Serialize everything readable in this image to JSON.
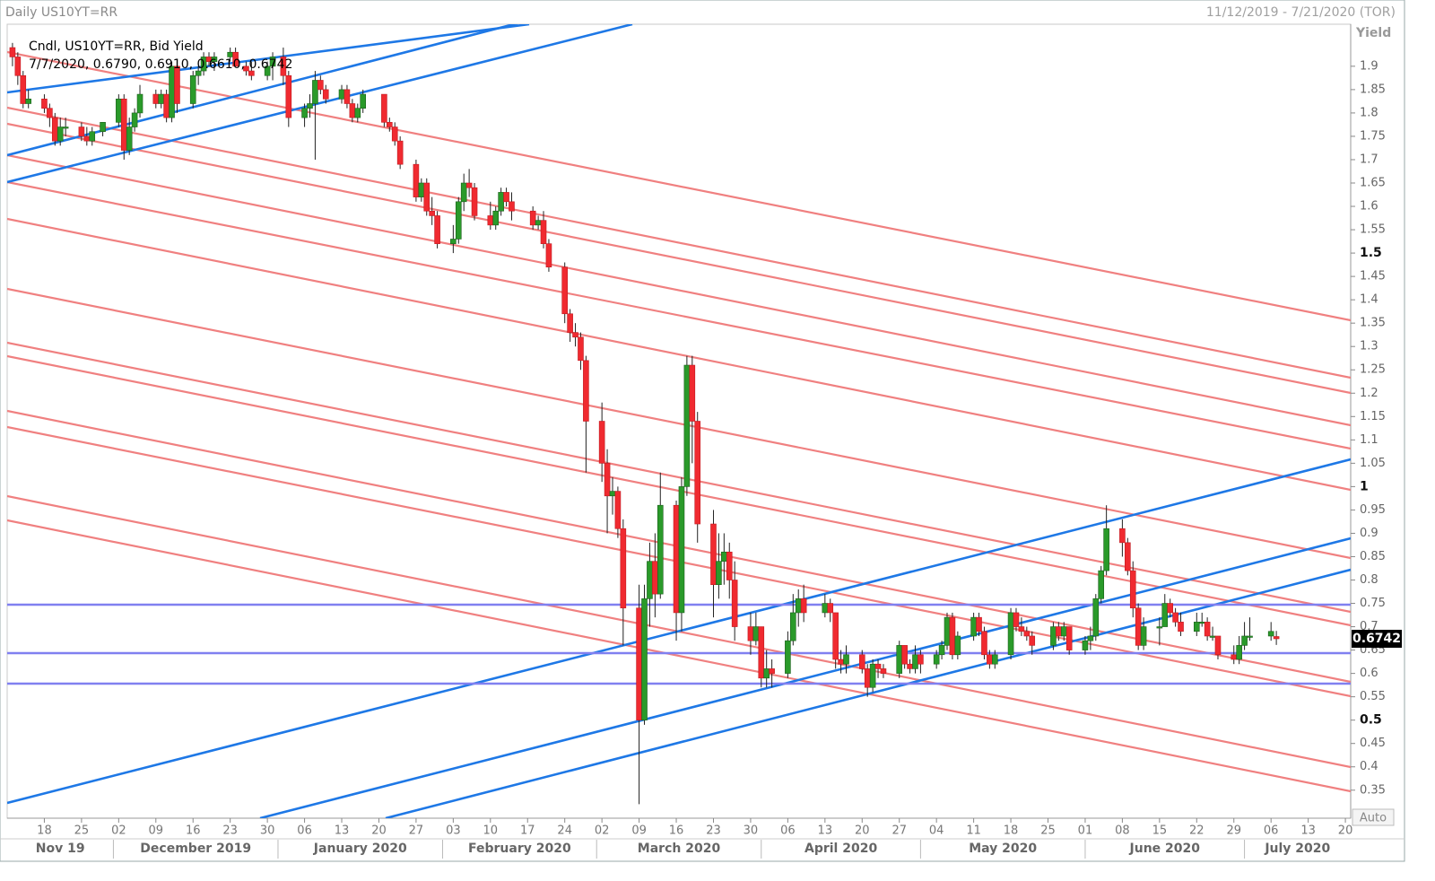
{
  "chart_data": {
    "type": "candlestick",
    "title": "Daily US10YT=RR",
    "subtitle": "11/12/2019 - 7/21/2020 (TOR)",
    "y_label": "Yield",
    "legend": [
      "Cndl, US10YT=RR, Bid Yield",
      "7/7/2020, 0.6790, 0.6910, 0.6610, 0.6742"
    ],
    "button": "Auto",
    "up_color": "#2a9a2a",
    "down_color": "#f02a30",
    "xlim": [
      "2019-11-11",
      "2020-07-21"
    ],
    "ylim": [
      0.29,
      1.99
    ],
    "yticks": [
      1.9,
      1.85,
      1.8,
      1.75,
      1.7,
      1.65,
      1.6,
      1.55,
      1.5,
      1.45,
      1.4,
      1.35,
      1.3,
      1.25,
      1.2,
      1.15,
      1.1,
      1.05,
      1,
      0.95,
      0.9,
      0.85,
      0.8,
      0.75,
      0.7,
      0.65,
      0.6,
      0.55,
      0.5,
      0.45,
      0.4,
      0.35
    ],
    "xticks": [
      {
        "value": "2019-11-18",
        "label": "18"
      },
      {
        "value": "2019-11-25",
        "label": "25"
      },
      {
        "value": "2019-12-02",
        "label": "02"
      },
      {
        "value": "2019-12-09",
        "label": "09"
      },
      {
        "value": "2019-12-16",
        "label": "16"
      },
      {
        "value": "2019-12-23",
        "label": "23"
      },
      {
        "value": "2019-12-30",
        "label": "30"
      },
      {
        "value": "2020-01-06",
        "label": "06"
      },
      {
        "value": "2020-01-13",
        "label": "13"
      },
      {
        "value": "2020-01-20",
        "label": "20"
      },
      {
        "value": "2020-01-27",
        "label": "27"
      },
      {
        "value": "2020-02-03",
        "label": "03"
      },
      {
        "value": "2020-02-10",
        "label": "10"
      },
      {
        "value": "2020-02-17",
        "label": "17"
      },
      {
        "value": "2020-02-24",
        "label": "24"
      },
      {
        "value": "2020-03-02",
        "label": "02"
      },
      {
        "value": "2020-03-09",
        "label": "09"
      },
      {
        "value": "2020-03-16",
        "label": "16"
      },
      {
        "value": "2020-03-23",
        "label": "23"
      },
      {
        "value": "2020-03-30",
        "label": "30"
      },
      {
        "value": "2020-04-06",
        "label": "06"
      },
      {
        "value": "2020-04-13",
        "label": "13"
      },
      {
        "value": "2020-04-20",
        "label": "20"
      },
      {
        "value": "2020-04-27",
        "label": "27"
      },
      {
        "value": "2020-05-04",
        "label": "04"
      },
      {
        "value": "2020-05-11",
        "label": "11"
      },
      {
        "value": "2020-05-18",
        "label": "18"
      },
      {
        "value": "2020-05-25",
        "label": "25"
      },
      {
        "value": "2020-06-01",
        "label": "01"
      },
      {
        "value": "2020-06-08",
        "label": "08"
      },
      {
        "value": "2020-06-15",
        "label": "15"
      },
      {
        "value": "2020-06-22",
        "label": "22"
      },
      {
        "value": "2020-06-29",
        "label": "29"
      },
      {
        "value": "2020-07-06",
        "label": "06"
      },
      {
        "value": "2020-07-13",
        "label": "13"
      },
      {
        "value": "2020-07-20",
        "label": "20"
      }
    ],
    "month_labels": [
      {
        "value": "2019-11-01",
        "label": "Nov 19"
      },
      {
        "value": "2019-12-01",
        "label": "December 2019"
      },
      {
        "value": "2020-01-01",
        "label": "January 2020"
      },
      {
        "value": "2020-02-01",
        "label": "February 2020"
      },
      {
        "value": "2020-03-01",
        "label": "March 2020"
      },
      {
        "value": "2020-04-01",
        "label": "April 2020"
      },
      {
        "value": "2020-05-01",
        "label": "May 2020"
      },
      {
        "value": "2020-06-01",
        "label": "June 2020"
      },
      {
        "value": "2020-07-01",
        "label": "July 2020"
      }
    ],
    "x": [
      "2019-11-12",
      "2019-11-13",
      "2019-11-14",
      "2019-11-15",
      "2019-11-18",
      "2019-11-19",
      "2019-11-20",
      "2019-11-21",
      "2019-11-22",
      "2019-11-25",
      "2019-11-26",
      "2019-11-27",
      "2019-11-29",
      "2019-12-02",
      "2019-12-03",
      "2019-12-04",
      "2019-12-05",
      "2019-12-06",
      "2019-12-09",
      "2019-12-10",
      "2019-12-11",
      "2019-12-12",
      "2019-12-13",
      "2019-12-16",
      "2019-12-17",
      "2019-12-18",
      "2019-12-19",
      "2019-12-20",
      "2019-12-23",
      "2019-12-24",
      "2019-12-26",
      "2019-12-27",
      "2019-12-30",
      "2019-12-31",
      "2020-01-02",
      "2020-01-03",
      "2020-01-06",
      "2020-01-07",
      "2020-01-08",
      "2020-01-09",
      "2020-01-10",
      "2020-01-13",
      "2020-01-14",
      "2020-01-15",
      "2020-01-16",
      "2020-01-17",
      "2020-01-21",
      "2020-01-22",
      "2020-01-23",
      "2020-01-24",
      "2020-01-27",
      "2020-01-28",
      "2020-01-29",
      "2020-01-30",
      "2020-01-31",
      "2020-02-03",
      "2020-02-04",
      "2020-02-05",
      "2020-02-06",
      "2020-02-07",
      "2020-02-10",
      "2020-02-11",
      "2020-02-12",
      "2020-02-13",
      "2020-02-14",
      "2020-02-18",
      "2020-02-19",
      "2020-02-20",
      "2020-02-21",
      "2020-02-24",
      "2020-02-25",
      "2020-02-26",
      "2020-02-27",
      "2020-02-28",
      "2020-03-02",
      "2020-03-03",
      "2020-03-04",
      "2020-03-05",
      "2020-03-06",
      "2020-03-09",
      "2020-03-10",
      "2020-03-11",
      "2020-03-12",
      "2020-03-13",
      "2020-03-16",
      "2020-03-17",
      "2020-03-18",
      "2020-03-19",
      "2020-03-20",
      "2020-03-23",
      "2020-03-24",
      "2020-03-25",
      "2020-03-26",
      "2020-03-27",
      "2020-03-30",
      "2020-03-31",
      "2020-04-01",
      "2020-04-02",
      "2020-04-03",
      "2020-04-06",
      "2020-04-07",
      "2020-04-08",
      "2020-04-09",
      "2020-04-13",
      "2020-04-14",
      "2020-04-15",
      "2020-04-16",
      "2020-04-17",
      "2020-04-20",
      "2020-04-21",
      "2020-04-22",
      "2020-04-23",
      "2020-04-24",
      "2020-04-27",
      "2020-04-28",
      "2020-04-29",
      "2020-04-30",
      "2020-05-01",
      "2020-05-04",
      "2020-05-05",
      "2020-05-06",
      "2020-05-07",
      "2020-05-08",
      "2020-05-11",
      "2020-05-12",
      "2020-05-13",
      "2020-05-14",
      "2020-05-15",
      "2020-05-18",
      "2020-05-19",
      "2020-05-20",
      "2020-05-21",
      "2020-05-22",
      "2020-05-26",
      "2020-05-27",
      "2020-05-28",
      "2020-05-29",
      "2020-06-01",
      "2020-06-02",
      "2020-06-03",
      "2020-06-04",
      "2020-06-05",
      "2020-06-08",
      "2020-06-09",
      "2020-06-10",
      "2020-06-11",
      "2020-06-12",
      "2020-06-15",
      "2020-06-16",
      "2020-06-17",
      "2020-06-18",
      "2020-06-19",
      "2020-06-22",
      "2020-06-23",
      "2020-06-24",
      "2020-06-25",
      "2020-06-26",
      "2020-06-29",
      "2020-06-30",
      "2020-07-01",
      "2020-07-02",
      "2020-07-06",
      "2020-07-07"
    ],
    "ohlc": [
      [
        1.94,
        1.95,
        1.9,
        1.92
      ],
      [
        1.92,
        1.93,
        1.86,
        1.88
      ],
      [
        1.88,
        1.89,
        1.81,
        1.82
      ],
      [
        1.82,
        1.85,
        1.81,
        1.83
      ],
      [
        1.83,
        1.84,
        1.8,
        1.81
      ],
      [
        1.81,
        1.82,
        1.77,
        1.79
      ],
      [
        1.79,
        1.8,
        1.73,
        1.74
      ],
      [
        1.74,
        1.79,
        1.73,
        1.77
      ],
      [
        1.77,
        1.79,
        1.75,
        1.77
      ],
      [
        1.77,
        1.78,
        1.74,
        1.75
      ],
      [
        1.75,
        1.77,
        1.73,
        1.74
      ],
      [
        1.74,
        1.77,
        1.73,
        1.76
      ],
      [
        1.76,
        1.78,
        1.75,
        1.78
      ],
      [
        1.78,
        1.84,
        1.77,
        1.83
      ],
      [
        1.83,
        1.84,
        1.7,
        1.72
      ],
      [
        1.72,
        1.79,
        1.71,
        1.77
      ],
      [
        1.77,
        1.81,
        1.76,
        1.8
      ],
      [
        1.8,
        1.86,
        1.79,
        1.84
      ],
      [
        1.84,
        1.85,
        1.81,
        1.82
      ],
      [
        1.82,
        1.85,
        1.81,
        1.84
      ],
      [
        1.84,
        1.85,
        1.78,
        1.79
      ],
      [
        1.79,
        1.91,
        1.78,
        1.9
      ],
      [
        1.9,
        1.91,
        1.8,
        1.82
      ],
      [
        1.82,
        1.89,
        1.81,
        1.88
      ],
      [
        1.88,
        1.9,
        1.86,
        1.89
      ],
      [
        1.89,
        1.93,
        1.88,
        1.92
      ],
      [
        1.92,
        1.93,
        1.9,
        1.91
      ],
      [
        1.91,
        1.93,
        1.89,
        1.92
      ],
      [
        1.92,
        1.94,
        1.91,
        1.93
      ],
      [
        1.93,
        1.94,
        1.9,
        1.9
      ],
      [
        1.9,
        1.91,
        1.88,
        1.89
      ],
      [
        1.89,
        1.91,
        1.87,
        1.88
      ],
      [
        1.88,
        1.91,
        1.87,
        1.9
      ],
      [
        1.9,
        1.93,
        1.87,
        1.92
      ],
      [
        1.92,
        1.94,
        1.86,
        1.88
      ],
      [
        1.88,
        1.89,
        1.77,
        1.79
      ],
      [
        1.79,
        1.82,
        1.77,
        1.81
      ],
      [
        1.81,
        1.84,
        1.79,
        1.82
      ],
      [
        1.82,
        1.89,
        1.7,
        1.87
      ],
      [
        1.87,
        1.88,
        1.84,
        1.85
      ],
      [
        1.85,
        1.86,
        1.82,
        1.83
      ],
      [
        1.83,
        1.86,
        1.82,
        1.85
      ],
      [
        1.85,
        1.86,
        1.81,
        1.82
      ],
      [
        1.82,
        1.83,
        1.78,
        1.79
      ],
      [
        1.79,
        1.82,
        1.78,
        1.81
      ],
      [
        1.81,
        1.85,
        1.8,
        1.84
      ],
      [
        1.84,
        1.84,
        1.77,
        1.78
      ],
      [
        1.78,
        1.79,
        1.76,
        1.77
      ],
      [
        1.77,
        1.78,
        1.73,
        1.74
      ],
      [
        1.74,
        1.75,
        1.68,
        1.69
      ],
      [
        1.69,
        1.7,
        1.61,
        1.62
      ],
      [
        1.62,
        1.66,
        1.61,
        1.65
      ],
      [
        1.65,
        1.66,
        1.58,
        1.59
      ],
      [
        1.59,
        1.62,
        1.56,
        1.58
      ],
      [
        1.58,
        1.59,
        1.51,
        1.52
      ],
      [
        1.52,
        1.56,
        1.5,
        1.53
      ],
      [
        1.53,
        1.62,
        1.52,
        1.61
      ],
      [
        1.61,
        1.67,
        1.59,
        1.65
      ],
      [
        1.65,
        1.68,
        1.62,
        1.64
      ],
      [
        1.64,
        1.65,
        1.57,
        1.58
      ],
      [
        1.58,
        1.61,
        1.55,
        1.56
      ],
      [
        1.56,
        1.6,
        1.55,
        1.59
      ],
      [
        1.59,
        1.64,
        1.58,
        1.63
      ],
      [
        1.63,
        1.64,
        1.6,
        1.61
      ],
      [
        1.61,
        1.63,
        1.57,
        1.59
      ],
      [
        1.59,
        1.6,
        1.55,
        1.56
      ],
      [
        1.56,
        1.58,
        1.55,
        1.57
      ],
      [
        1.57,
        1.59,
        1.51,
        1.52
      ],
      [
        1.52,
        1.53,
        1.46,
        1.47
      ],
      [
        1.47,
        1.48,
        1.35,
        1.37
      ],
      [
        1.37,
        1.38,
        1.31,
        1.33
      ],
      [
        1.33,
        1.35,
        1.3,
        1.32
      ],
      [
        1.32,
        1.33,
        1.25,
        1.27
      ],
      [
        1.27,
        1.28,
        1.03,
        1.14
      ],
      [
        1.14,
        1.18,
        1.01,
        1.05
      ],
      [
        1.05,
        1.08,
        0.9,
        0.98
      ],
      [
        0.98,
        1.02,
        0.94,
        0.99
      ],
      [
        0.99,
        1.0,
        0.89,
        0.91
      ],
      [
        0.91,
        0.93,
        0.66,
        0.74
      ],
      [
        0.74,
        0.79,
        0.32,
        0.5
      ],
      [
        0.5,
        0.79,
        0.49,
        0.76
      ],
      [
        0.76,
        0.88,
        0.7,
        0.84
      ],
      [
        0.84,
        0.9,
        0.72,
        0.77
      ],
      [
        0.77,
        1.03,
        0.76,
        0.96
      ],
      [
        0.96,
        0.97,
        0.67,
        0.73
      ],
      [
        0.73,
        1.02,
        0.69,
        1.0
      ],
      [
        1.0,
        1.28,
        0.98,
        1.26
      ],
      [
        1.26,
        1.28,
        1.05,
        1.14
      ],
      [
        1.14,
        1.16,
        0.88,
        0.92
      ],
      [
        0.92,
        0.95,
        0.72,
        0.79
      ],
      [
        0.79,
        0.9,
        0.76,
        0.84
      ],
      [
        0.84,
        0.9,
        0.79,
        0.86
      ],
      [
        0.86,
        0.88,
        0.76,
        0.8
      ],
      [
        0.8,
        0.84,
        0.67,
        0.7
      ],
      [
        0.7,
        0.73,
        0.64,
        0.67
      ],
      [
        0.67,
        0.73,
        0.66,
        0.7
      ],
      [
        0.7,
        0.7,
        0.57,
        0.59
      ],
      [
        0.59,
        0.65,
        0.57,
        0.61
      ],
      [
        0.61,
        0.63,
        0.57,
        0.6
      ],
      [
        0.6,
        0.69,
        0.59,
        0.67
      ],
      [
        0.67,
        0.77,
        0.66,
        0.73
      ],
      [
        0.73,
        0.78,
        0.7,
        0.76
      ],
      [
        0.76,
        0.79,
        0.71,
        0.73
      ],
      [
        0.73,
        0.77,
        0.72,
        0.75
      ],
      [
        0.75,
        0.76,
        0.71,
        0.73
      ],
      [
        0.73,
        0.73,
        0.61,
        0.63
      ],
      [
        0.63,
        0.65,
        0.6,
        0.62
      ],
      [
        0.62,
        0.66,
        0.6,
        0.64
      ],
      [
        0.64,
        0.65,
        0.6,
        0.61
      ],
      [
        0.61,
        0.62,
        0.55,
        0.57
      ],
      [
        0.57,
        0.63,
        0.56,
        0.62
      ],
      [
        0.62,
        0.63,
        0.59,
        0.61
      ],
      [
        0.61,
        0.62,
        0.59,
        0.6
      ],
      [
        0.6,
        0.67,
        0.59,
        0.66
      ],
      [
        0.66,
        0.66,
        0.61,
        0.62
      ],
      [
        0.62,
        0.63,
        0.6,
        0.61
      ],
      [
        0.61,
        0.66,
        0.6,
        0.64
      ],
      [
        0.64,
        0.65,
        0.6,
        0.62
      ],
      [
        0.62,
        0.65,
        0.61,
        0.64
      ],
      [
        0.64,
        0.67,
        0.63,
        0.66
      ],
      [
        0.66,
        0.73,
        0.65,
        0.72
      ],
      [
        0.72,
        0.73,
        0.63,
        0.64
      ],
      [
        0.64,
        0.69,
        0.63,
        0.68
      ],
      [
        0.68,
        0.73,
        0.67,
        0.72
      ],
      [
        0.72,
        0.73,
        0.68,
        0.69
      ],
      [
        0.69,
        0.7,
        0.63,
        0.64
      ],
      [
        0.64,
        0.65,
        0.61,
        0.62
      ],
      [
        0.62,
        0.65,
        0.61,
        0.64
      ],
      [
        0.64,
        0.74,
        0.63,
        0.73
      ],
      [
        0.73,
        0.74,
        0.69,
        0.7
      ],
      [
        0.7,
        0.72,
        0.68,
        0.69
      ],
      [
        0.69,
        0.7,
        0.67,
        0.68
      ],
      [
        0.68,
        0.69,
        0.64,
        0.66
      ],
      [
        0.66,
        0.71,
        0.65,
        0.7
      ],
      [
        0.7,
        0.71,
        0.67,
        0.68
      ],
      [
        0.68,
        0.71,
        0.67,
        0.7
      ],
      [
        0.7,
        0.7,
        0.64,
        0.65
      ],
      [
        0.65,
        0.68,
        0.64,
        0.67
      ],
      [
        0.67,
        0.7,
        0.65,
        0.68
      ],
      [
        0.68,
        0.77,
        0.67,
        0.76
      ],
      [
        0.76,
        0.83,
        0.75,
        0.82
      ],
      [
        0.82,
        0.96,
        0.81,
        0.91
      ],
      [
        0.91,
        0.93,
        0.85,
        0.88
      ],
      [
        0.88,
        0.89,
        0.81,
        0.82
      ],
      [
        0.82,
        0.84,
        0.72,
        0.74
      ],
      [
        0.74,
        0.75,
        0.65,
        0.66
      ],
      [
        0.66,
        0.72,
        0.65,
        0.7
      ],
      [
        0.7,
        0.72,
        0.66,
        0.7
      ],
      [
        0.7,
        0.77,
        0.7,
        0.75
      ],
      [
        0.75,
        0.76,
        0.72,
        0.73
      ],
      [
        0.73,
        0.74,
        0.7,
        0.71
      ],
      [
        0.71,
        0.73,
        0.68,
        0.69
      ],
      [
        0.69,
        0.73,
        0.68,
        0.71
      ],
      [
        0.71,
        0.73,
        0.7,
        0.71
      ],
      [
        0.71,
        0.72,
        0.67,
        0.68
      ],
      [
        0.68,
        0.7,
        0.67,
        0.68
      ],
      [
        0.68,
        0.68,
        0.63,
        0.64
      ],
      [
        0.64,
        0.66,
        0.62,
        0.63
      ],
      [
        0.63,
        0.68,
        0.62,
        0.66
      ],
      [
        0.66,
        0.71,
        0.65,
        0.68
      ],
      [
        0.68,
        0.72,
        0.67,
        0.68
      ],
      [
        0.68,
        0.71,
        0.67,
        0.69
      ],
      [
        0.679,
        0.691,
        0.661,
        0.6742
      ]
    ]
  }
}
